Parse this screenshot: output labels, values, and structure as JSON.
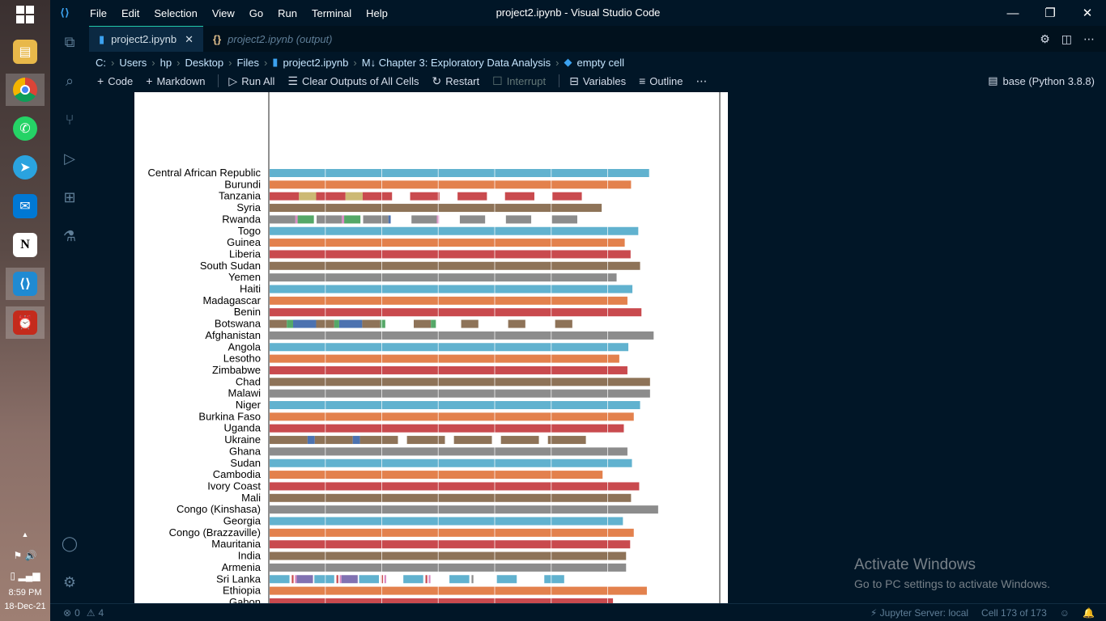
{
  "window": {
    "title": "project2.ipynb - Visual Studio Code",
    "menu": [
      "File",
      "Edit",
      "Selection",
      "View",
      "Go",
      "Run",
      "Terminal",
      "Help"
    ]
  },
  "tabs": [
    {
      "label": "project2.ipynb",
      "active": true
    },
    {
      "label": "project2.ipynb (output)",
      "active": false
    }
  ],
  "breadcrumb": [
    "C:",
    "Users",
    "hp",
    "Desktop",
    "Files",
    "project2.ipynb",
    "M↓ Chapter 3: Exploratory Data Analysis",
    "empty cell"
  ],
  "toolbar": {
    "code": "Code",
    "markdown": "Markdown",
    "run_all": "Run All",
    "clear_outputs": "Clear Outputs of All Cells",
    "restart": "Restart",
    "interrupt": "Interrupt",
    "variables": "Variables",
    "outline": "Outline",
    "kernel": "base (Python 3.8.8)"
  },
  "taskbar": {
    "time": "8:59 PM",
    "date": "18-Dec-21"
  },
  "status": {
    "errors": "0",
    "warnings": "4",
    "jupyter": "Jupyter Server: local",
    "cell": "Cell 173 of 173"
  },
  "watermark": {
    "line1": "Activate Windows",
    "line2": "Go to PC settings to activate Windows."
  },
  "colors": {
    "blue": "#61b2cf",
    "orange": "#e3814d",
    "red": "#c94a4e",
    "brown": "#8e7358",
    "gray": "#8c8c8c",
    "green": "#55a868",
    "tan": "#ccb974",
    "navy": "#4c72b0",
    "purple": "#8172b2",
    "pink": "#da8bc3"
  },
  "chart_data": {
    "type": "bar",
    "orientation": "horizontal",
    "xlim": [
      0,
      100
    ],
    "gridlines": [
      12.5,
      25,
      37.5,
      50,
      62.5,
      75,
      87.5
    ],
    "series_note": "Each country bar is a single stacked row; bar totals estimated as percent of axis width.",
    "categories": [
      "Central African Republic",
      "Burundi",
      "Tanzania",
      "Syria",
      "Rwanda",
      "Togo",
      "Guinea",
      "Liberia",
      "South Sudan",
      "Yemen",
      "Haiti",
      "Madagascar",
      "Benin",
      "Botswana",
      "Afghanistan",
      "Angola",
      "Lesotho",
      "Zimbabwe",
      "Chad",
      "Malawi",
      "Niger",
      "Burkina Faso",
      "Uganda",
      "Ukraine",
      "Ghana",
      "Sudan",
      "Cambodia",
      "Ivory Coast",
      "Mali",
      "Congo (Kinshasa)",
      "Georgia",
      "Congo (Brazzaville)",
      "Mauritania",
      "India",
      "Armenia",
      "Sri Lanka",
      "Ethiopia",
      "Gabon"
    ],
    "bars": [
      {
        "segments": [
          {
            "v": 84,
            "c": "blue"
          }
        ]
      },
      {
        "segments": [
          {
            "v": 80,
            "c": "orange"
          }
        ]
      },
      {
        "segments": [
          {
            "v": 6.5,
            "c": "red"
          },
          {
            "v": 3.8,
            "c": "tan"
          },
          {
            "v": 6.5,
            "c": "red"
          },
          {
            "v": 3.8,
            "c": "tan"
          },
          {
            "v": 6.5,
            "c": "red"
          },
          {
            "v": 4,
            "c": "none"
          },
          {
            "v": 6.5,
            "c": "red"
          },
          {
            "v": 4,
            "c": "none"
          },
          {
            "v": 6.5,
            "c": "red"
          },
          {
            "v": 4,
            "c": "none"
          },
          {
            "v": 6.5,
            "c": "red"
          },
          {
            "v": 4,
            "c": "none"
          },
          {
            "v": 6.5,
            "c": "red"
          }
        ]
      },
      {
        "segments": [
          {
            "v": 73.5,
            "c": "brown"
          }
        ]
      },
      {
        "segments": [
          {
            "v": 5.7,
            "c": "gray"
          },
          {
            "v": 0.5,
            "c": "pink"
          },
          {
            "v": 3.6,
            "c": "green"
          },
          {
            "v": 0.6,
            "c": "none"
          },
          {
            "v": 5.6,
            "c": "gray"
          },
          {
            "v": 0.5,
            "c": "pink"
          },
          {
            "v": 3.6,
            "c": "green"
          },
          {
            "v": 0.6,
            "c": "none"
          },
          {
            "v": 5.6,
            "c": "gray"
          },
          {
            "v": 0.5,
            "c": "navy"
          },
          {
            "v": 4.6,
            "c": "none"
          },
          {
            "v": 5.6,
            "c": "gray"
          },
          {
            "v": 0.5,
            "c": "pink"
          },
          {
            "v": 4.6,
            "c": "none"
          },
          {
            "v": 5.6,
            "c": "gray"
          },
          {
            "v": 4.6,
            "c": "none"
          },
          {
            "v": 5.6,
            "c": "gray"
          },
          {
            "v": 4.6,
            "c": "none"
          },
          {
            "v": 5.6,
            "c": "gray"
          }
        ]
      },
      {
        "segments": [
          {
            "v": 81.6,
            "c": "blue"
          }
        ]
      },
      {
        "segments": [
          {
            "v": 78.6,
            "c": "orange"
          }
        ]
      },
      {
        "segments": [
          {
            "v": 79.9,
            "c": "red"
          }
        ]
      },
      {
        "segments": [
          {
            "v": 82,
            "c": "brown"
          }
        ]
      },
      {
        "segments": [
          {
            "v": 76.8,
            "c": "gray"
          }
        ]
      },
      {
        "segments": [
          {
            "v": 80.3,
            "c": "blue"
          }
        ]
      },
      {
        "segments": [
          {
            "v": 79.2,
            "c": "orange"
          }
        ]
      },
      {
        "segments": [
          {
            "v": 82.3,
            "c": "red"
          }
        ]
      },
      {
        "segments": [
          {
            "v": 3.8,
            "c": "brown"
          },
          {
            "v": 1.4,
            "c": "green"
          },
          {
            "v": 5.1,
            "c": "navy"
          },
          {
            "v": 4,
            "c": "brown"
          },
          {
            "v": 1.1,
            "c": "green"
          },
          {
            "v": 5.1,
            "c": "navy"
          },
          {
            "v": 4,
            "c": "brown"
          },
          {
            "v": 1.1,
            "c": "green"
          },
          {
            "v": 6.3,
            "c": "none"
          },
          {
            "v": 3.8,
            "c": "brown"
          },
          {
            "v": 1.1,
            "c": "green"
          },
          {
            "v": 5.6,
            "c": "none"
          },
          {
            "v": 3.8,
            "c": "brown"
          },
          {
            "v": 6.6,
            "c": "none"
          },
          {
            "v": 3.8,
            "c": "brown"
          },
          {
            "v": 6.6,
            "c": "none"
          },
          {
            "v": 3.8,
            "c": "brown"
          }
        ]
      },
      {
        "segments": [
          {
            "v": 85,
            "c": "gray"
          }
        ]
      },
      {
        "segments": [
          {
            "v": 79.4,
            "c": "blue"
          }
        ]
      },
      {
        "segments": [
          {
            "v": 77.4,
            "c": "orange"
          }
        ]
      },
      {
        "segments": [
          {
            "v": 79.2,
            "c": "red"
          }
        ]
      },
      {
        "segments": [
          {
            "v": 84.2,
            "c": "brown"
          }
        ]
      },
      {
        "segments": [
          {
            "v": 84.2,
            "c": "gray"
          }
        ]
      },
      {
        "segments": [
          {
            "v": 82,
            "c": "blue"
          }
        ]
      },
      {
        "segments": [
          {
            "v": 80.6,
            "c": "orange"
          }
        ]
      },
      {
        "segments": [
          {
            "v": 78.4,
            "c": "red"
          }
        ]
      },
      {
        "segments": [
          {
            "v": 8.4,
            "c": "brown"
          },
          {
            "v": 1.6,
            "c": "navy"
          },
          {
            "v": 8.4,
            "c": "brown"
          },
          {
            "v": 1.6,
            "c": "navy"
          },
          {
            "v": 8.4,
            "c": "brown"
          },
          {
            "v": 2,
            "c": "none"
          },
          {
            "v": 8.4,
            "c": "brown"
          },
          {
            "v": 2,
            "c": "none"
          },
          {
            "v": 8.4,
            "c": "brown"
          },
          {
            "v": 2,
            "c": "none"
          },
          {
            "v": 8.4,
            "c": "brown"
          },
          {
            "v": 2,
            "c": "none"
          },
          {
            "v": 8.4,
            "c": "brown"
          }
        ]
      },
      {
        "segments": [
          {
            "v": 79.2,
            "c": "gray"
          }
        ]
      },
      {
        "segments": [
          {
            "v": 80.2,
            "c": "blue"
          }
        ]
      },
      {
        "segments": [
          {
            "v": 73.7,
            "c": "orange"
          }
        ]
      },
      {
        "segments": [
          {
            "v": 81.8,
            "c": "red"
          }
        ]
      },
      {
        "segments": [
          {
            "v": 80,
            "c": "brown"
          }
        ]
      },
      {
        "segments": [
          {
            "v": 86,
            "c": "gray"
          }
        ]
      },
      {
        "segments": [
          {
            "v": 78.2,
            "c": "blue"
          }
        ]
      },
      {
        "segments": [
          {
            "v": 80.6,
            "c": "orange"
          }
        ]
      },
      {
        "segments": [
          {
            "v": 79.8,
            "c": "red"
          }
        ]
      },
      {
        "segments": [
          {
            "v": 78.9,
            "c": "brown"
          }
        ]
      },
      {
        "segments": [
          {
            "v": 78.9,
            "c": "gray"
          }
        ]
      },
      {
        "segments": [
          {
            "v": 4.4,
            "c": "blue"
          },
          {
            "v": 0.5,
            "c": "none"
          },
          {
            "v": 0.4,
            "c": "red"
          },
          {
            "v": 0.3,
            "c": "none"
          },
          {
            "v": 0.4,
            "c": "pink"
          },
          {
            "v": 3.6,
            "c": "purple"
          },
          {
            "v": 0.3,
            "c": "none"
          },
          {
            "v": 4.4,
            "c": "blue"
          },
          {
            "v": 0.5,
            "c": "none"
          },
          {
            "v": 0.4,
            "c": "red"
          },
          {
            "v": 0.3,
            "c": "none"
          },
          {
            "v": 0.4,
            "c": "pink"
          },
          {
            "v": 3.6,
            "c": "purple"
          },
          {
            "v": 0.3,
            "c": "none"
          },
          {
            "v": 4.4,
            "c": "blue"
          },
          {
            "v": 0.5,
            "c": "none"
          },
          {
            "v": 0.4,
            "c": "red"
          },
          {
            "v": 0.3,
            "c": "none"
          },
          {
            "v": 0.4,
            "c": "pink"
          },
          {
            "v": 3.8,
            "c": "none"
          },
          {
            "v": 4.4,
            "c": "blue"
          },
          {
            "v": 0.5,
            "c": "none"
          },
          {
            "v": 0.4,
            "c": "red"
          },
          {
            "v": 0.3,
            "c": "none"
          },
          {
            "v": 0.4,
            "c": "pink"
          },
          {
            "v": 4.2,
            "c": "none"
          },
          {
            "v": 4.4,
            "c": "blue"
          },
          {
            "v": 0.5,
            "c": "none"
          },
          {
            "v": 0.4,
            "c": "gray"
          },
          {
            "v": 5.2,
            "c": "none"
          },
          {
            "v": 4.4,
            "c": "blue"
          },
          {
            "v": 6.1,
            "c": "none"
          },
          {
            "v": 4.4,
            "c": "blue"
          }
        ]
      },
      {
        "segments": [
          {
            "v": 83.5,
            "c": "orange"
          }
        ]
      },
      {
        "segments": [
          {
            "v": 76,
            "c": "red"
          }
        ]
      }
    ]
  }
}
